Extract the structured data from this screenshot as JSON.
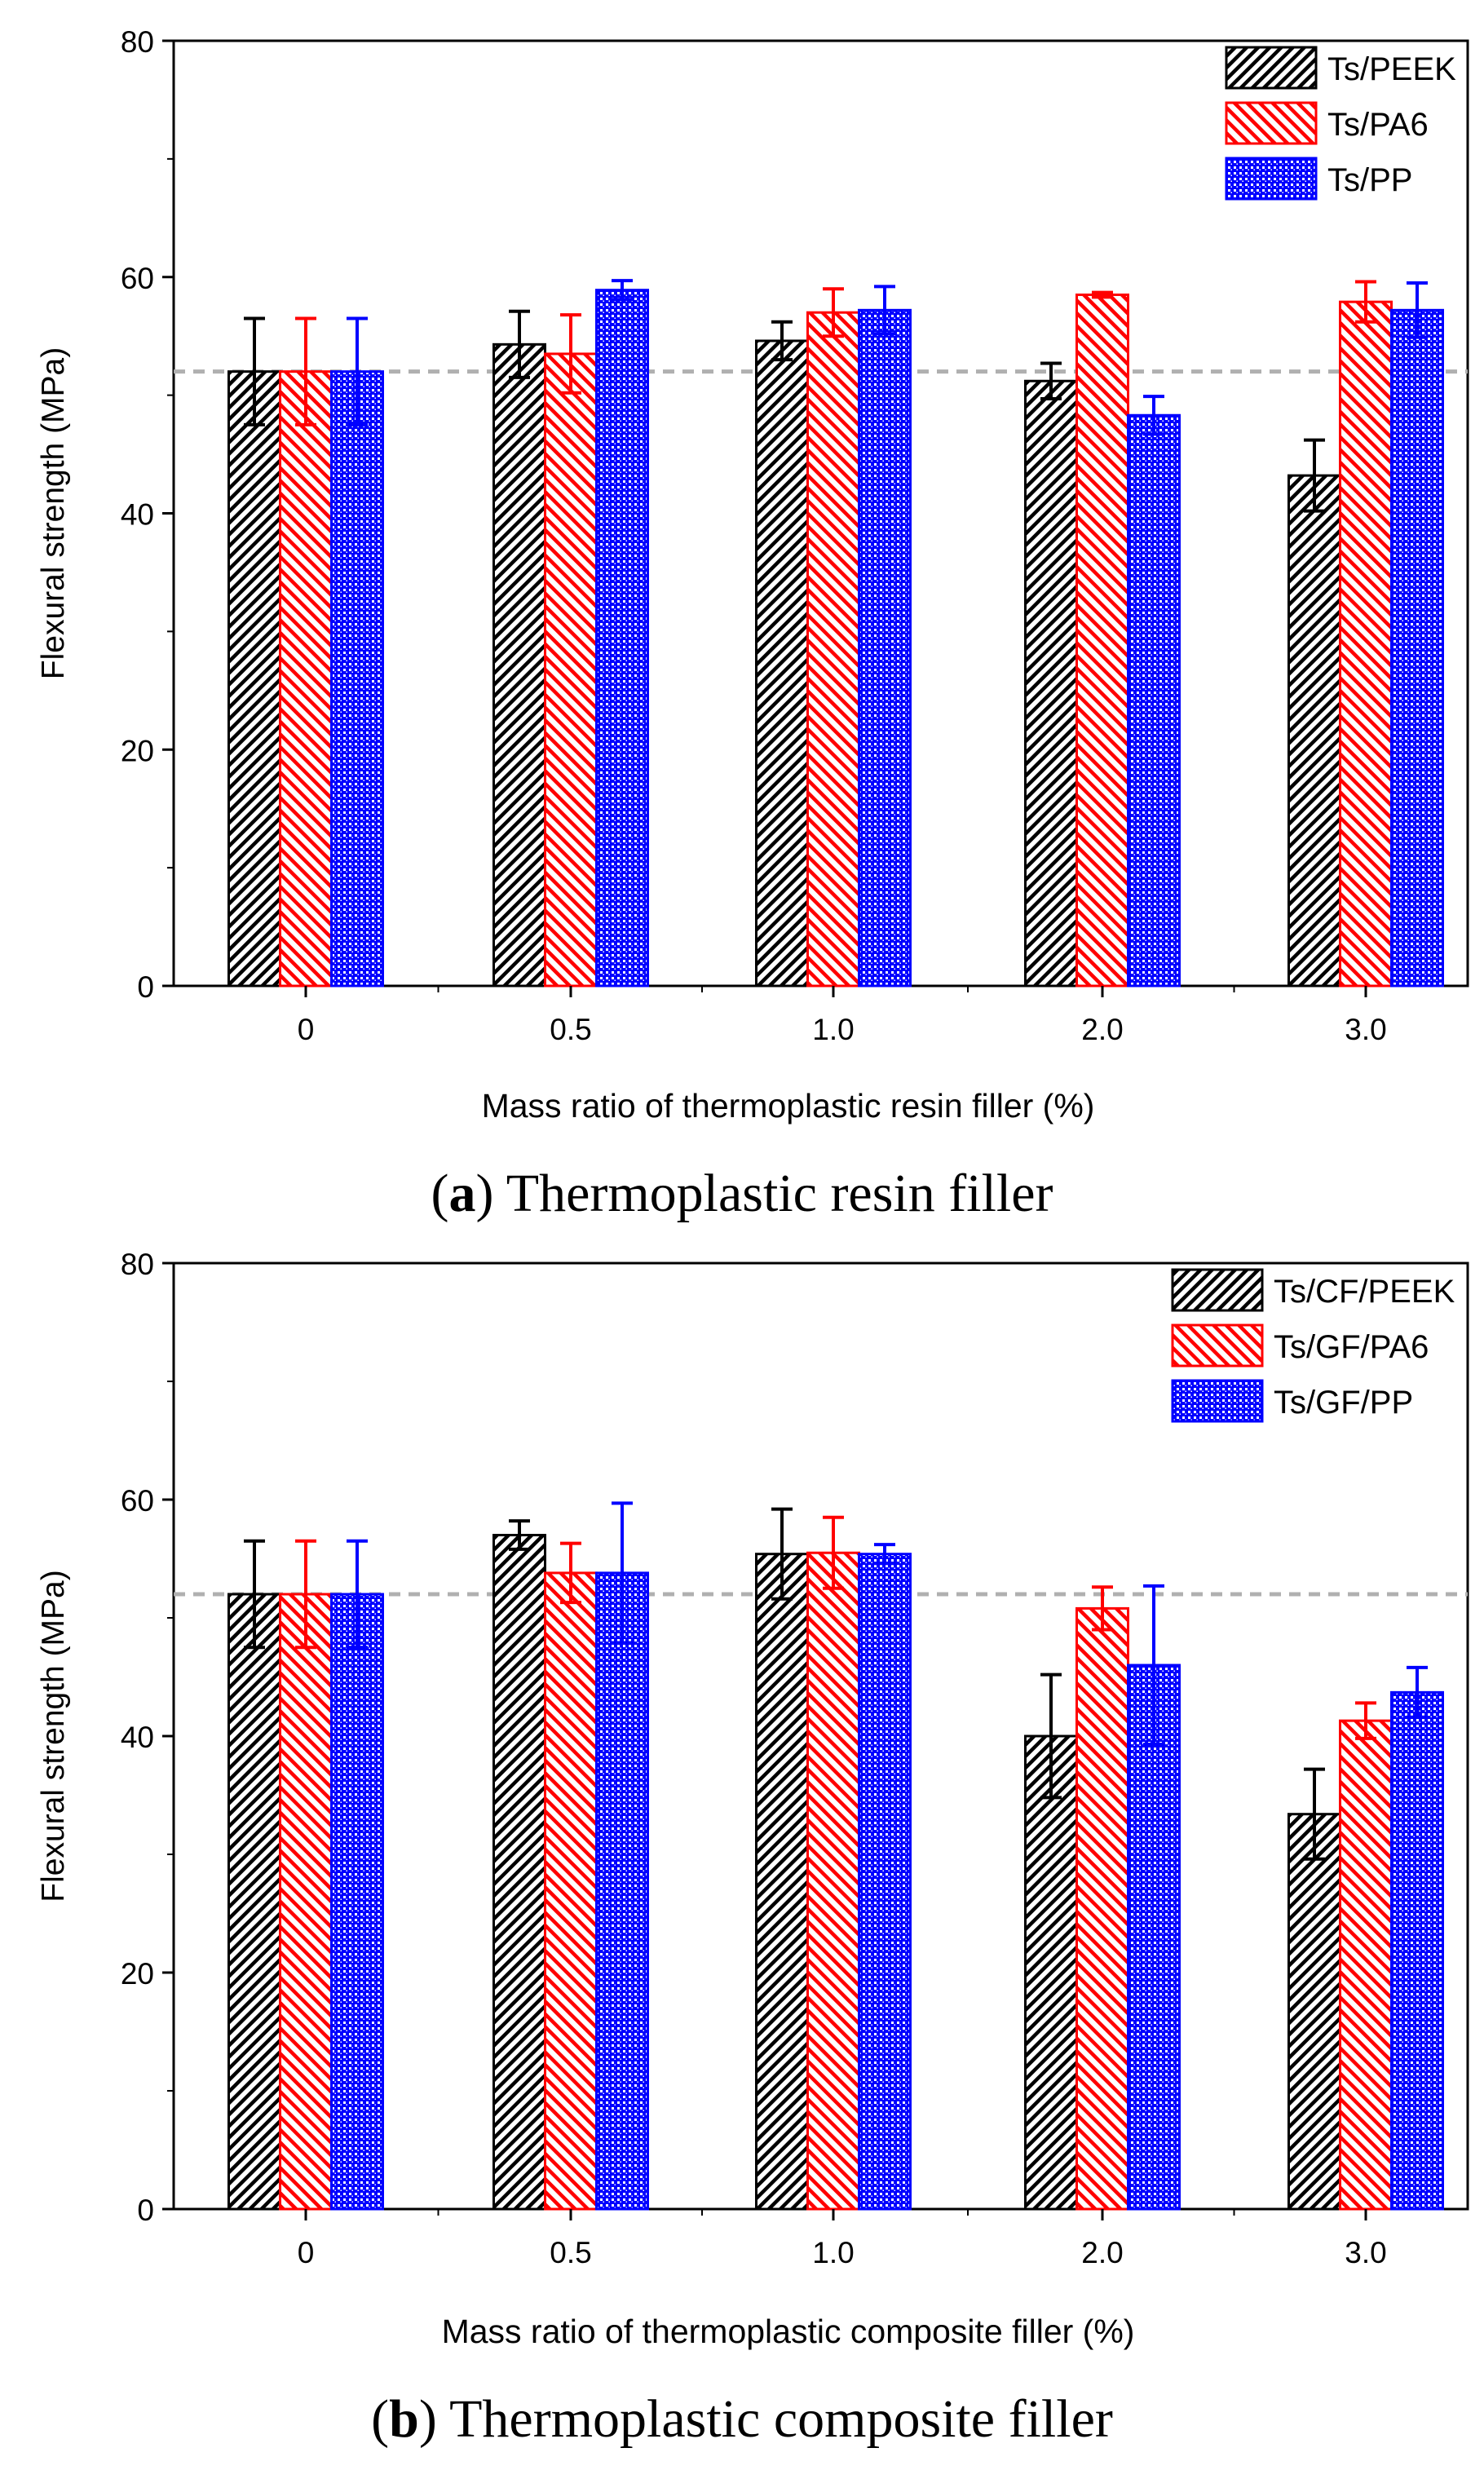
{
  "chart_data": [
    {
      "type": "bar",
      "panel": "a",
      "caption_label": "a",
      "caption_text": "Thermoplastic resin filler",
      "xlabel": "Mass ratio of thermoplastic resin filler (%)",
      "ylabel": "Flexural strength (MPa)",
      "ylim": [
        0,
        80
      ],
      "yticks": [
        "0",
        "20",
        "40",
        "60",
        "80"
      ],
      "categories": [
        "0",
        "0.5",
        "1.0",
        "2.0",
        "3.0"
      ],
      "reference_line": 52,
      "legend_position": "top-right",
      "series": [
        {
          "name": "Ts/PEEK",
          "color": "#000000",
          "pattern": "dense-diagonal",
          "values": [
            52,
            54.3,
            54.6,
            51.2,
            43.2
          ],
          "errors": [
            4.5,
            2.8,
            1.6,
            1.5,
            3
          ]
        },
        {
          "name": "Ts/PA6",
          "color": "#ff0000",
          "pattern": "diagonal",
          "values": [
            52,
            53.5,
            57,
            58.5,
            57.9
          ],
          "errors": [
            4.5,
            3.3,
            2,
            0.2,
            1.7
          ]
        },
        {
          "name": "Ts/PP",
          "color": "#0000ff",
          "pattern": "dots",
          "values": [
            52,
            58.9,
            57.2,
            48.3,
            57.2
          ],
          "errors": [
            4.5,
            0.8,
            2,
            1.6,
            2.3
          ]
        }
      ]
    },
    {
      "type": "bar",
      "panel": "b",
      "caption_label": "b",
      "caption_text": "Thermoplastic composite filler",
      "xlabel": "Mass ratio of thermoplastic composite filler (%)",
      "ylabel": "Flexural strength (MPa)",
      "ylim": [
        0,
        80
      ],
      "yticks": [
        "0",
        "20",
        "40",
        "60",
        "80"
      ],
      "categories": [
        "0",
        "0.5",
        "1.0",
        "2.0",
        "3.0"
      ],
      "reference_line": 52,
      "legend_position": "top-right",
      "series": [
        {
          "name": "Ts/CF/PEEK",
          "color": "#000000",
          "pattern": "dense-diagonal",
          "values": [
            52,
            57,
            55.4,
            40,
            33.4
          ],
          "errors": [
            4.5,
            1.2,
            3.8,
            5.2,
            3.8
          ]
        },
        {
          "name": "Ts/GF/PA6",
          "color": "#ff0000",
          "pattern": "diagonal",
          "values": [
            52,
            53.8,
            55.5,
            50.8,
            41.3
          ],
          "errors": [
            4.5,
            2.5,
            3,
            1.8,
            1.5
          ]
        },
        {
          "name": "Ts/GF/PP",
          "color": "#0000ff",
          "pattern": "dots",
          "values": [
            52,
            53.8,
            55.4,
            46,
            43.7
          ],
          "errors": [
            4.5,
            5.9,
            0.8,
            6.7,
            2.1
          ]
        }
      ]
    }
  ]
}
